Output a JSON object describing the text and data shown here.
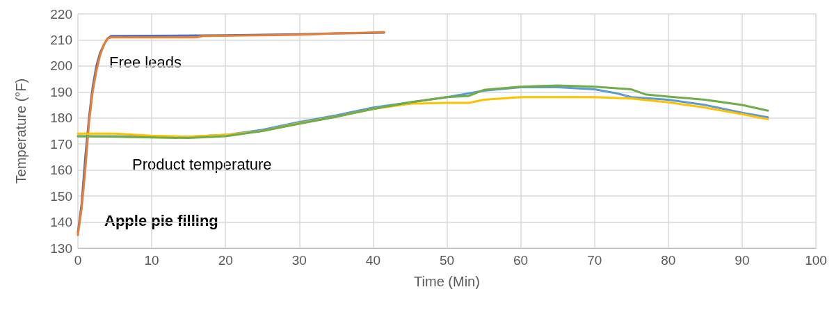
{
  "chart_data": {
    "type": "line",
    "xlabel": "Time (Min)",
    "ylabel": "Temperature (°F)",
    "xlim": [
      0,
      100
    ],
    "xticks": [
      0,
      10,
      20,
      30,
      40,
      50,
      60,
      70,
      80,
      90,
      100
    ],
    "ylim": [
      130,
      220
    ],
    "yticks": [
      130,
      140,
      150,
      160,
      170,
      180,
      190,
      200,
      210,
      220
    ],
    "grid": true,
    "marker": "none",
    "line_style": "solid",
    "annotations": [
      "Free leads",
      "Product temperature",
      "Apple pie filling"
    ],
    "series": [
      {
        "color": "#4472c4",
        "x": [
          0,
          0.5,
          1,
          1.5,
          2,
          2.5,
          3,
          3.5,
          4,
          4.5,
          10,
          20,
          30,
          35,
          41.5
        ],
        "values": [
          136,
          147,
          165,
          180,
          192,
          200,
          205,
          208,
          210.5,
          211.5,
          211.6,
          211.8,
          212.2,
          212.5,
          212.8
        ]
      },
      {
        "color": "#ed7d31",
        "x": [
          0,
          0.5,
          1,
          1.5,
          2,
          2.5,
          3,
          3.5,
          4,
          4.5,
          10,
          16,
          17,
          25,
          30,
          35,
          41.5
        ],
        "values": [
          135,
          145,
          160,
          178,
          190,
          198,
          204,
          208,
          210.5,
          211,
          211,
          211,
          211.5,
          211.8,
          212,
          212.5,
          213
        ]
      },
      {
        "color": "#5b9bd5",
        "x": [
          0,
          5,
          10,
          15,
          20,
          25,
          30,
          35,
          40,
          45,
          50,
          53,
          55,
          60,
          65,
          70,
          73,
          75,
          80,
          85,
          90,
          93.5
        ],
        "values": [
          173,
          173,
          172.8,
          172.8,
          173.5,
          175.5,
          178.5,
          181,
          184,
          186,
          188,
          189.5,
          190.5,
          191.8,
          191.8,
          191,
          189.5,
          188,
          187,
          185,
          182,
          180.3
        ]
      },
      {
        "color": "#ffc000",
        "x": [
          0,
          5,
          10,
          15,
          20,
          25,
          30,
          35,
          40,
          45,
          50,
          53,
          55,
          60,
          65,
          70,
          75,
          80,
          85,
          90,
          93.5
        ],
        "values": [
          174,
          174,
          173.2,
          172.8,
          173.5,
          175,
          178,
          180.5,
          183.5,
          185.5,
          185.8,
          185.8,
          187,
          188,
          188,
          188,
          187.5,
          186,
          184,
          181.5,
          179.5
        ]
      },
      {
        "color": "#70ad47",
        "x": [
          0,
          5,
          10,
          15,
          20,
          25,
          30,
          35,
          40,
          45,
          50,
          53,
          55,
          60,
          65,
          70,
          75,
          77,
          80,
          85,
          90,
          93.5
        ],
        "values": [
          173,
          172.8,
          172.5,
          172.3,
          173,
          175,
          177.8,
          180.5,
          183.5,
          186,
          188,
          188.5,
          190.8,
          192,
          192.5,
          192,
          191,
          189,
          188.2,
          187,
          185,
          182.8
        ]
      }
    ]
  }
}
